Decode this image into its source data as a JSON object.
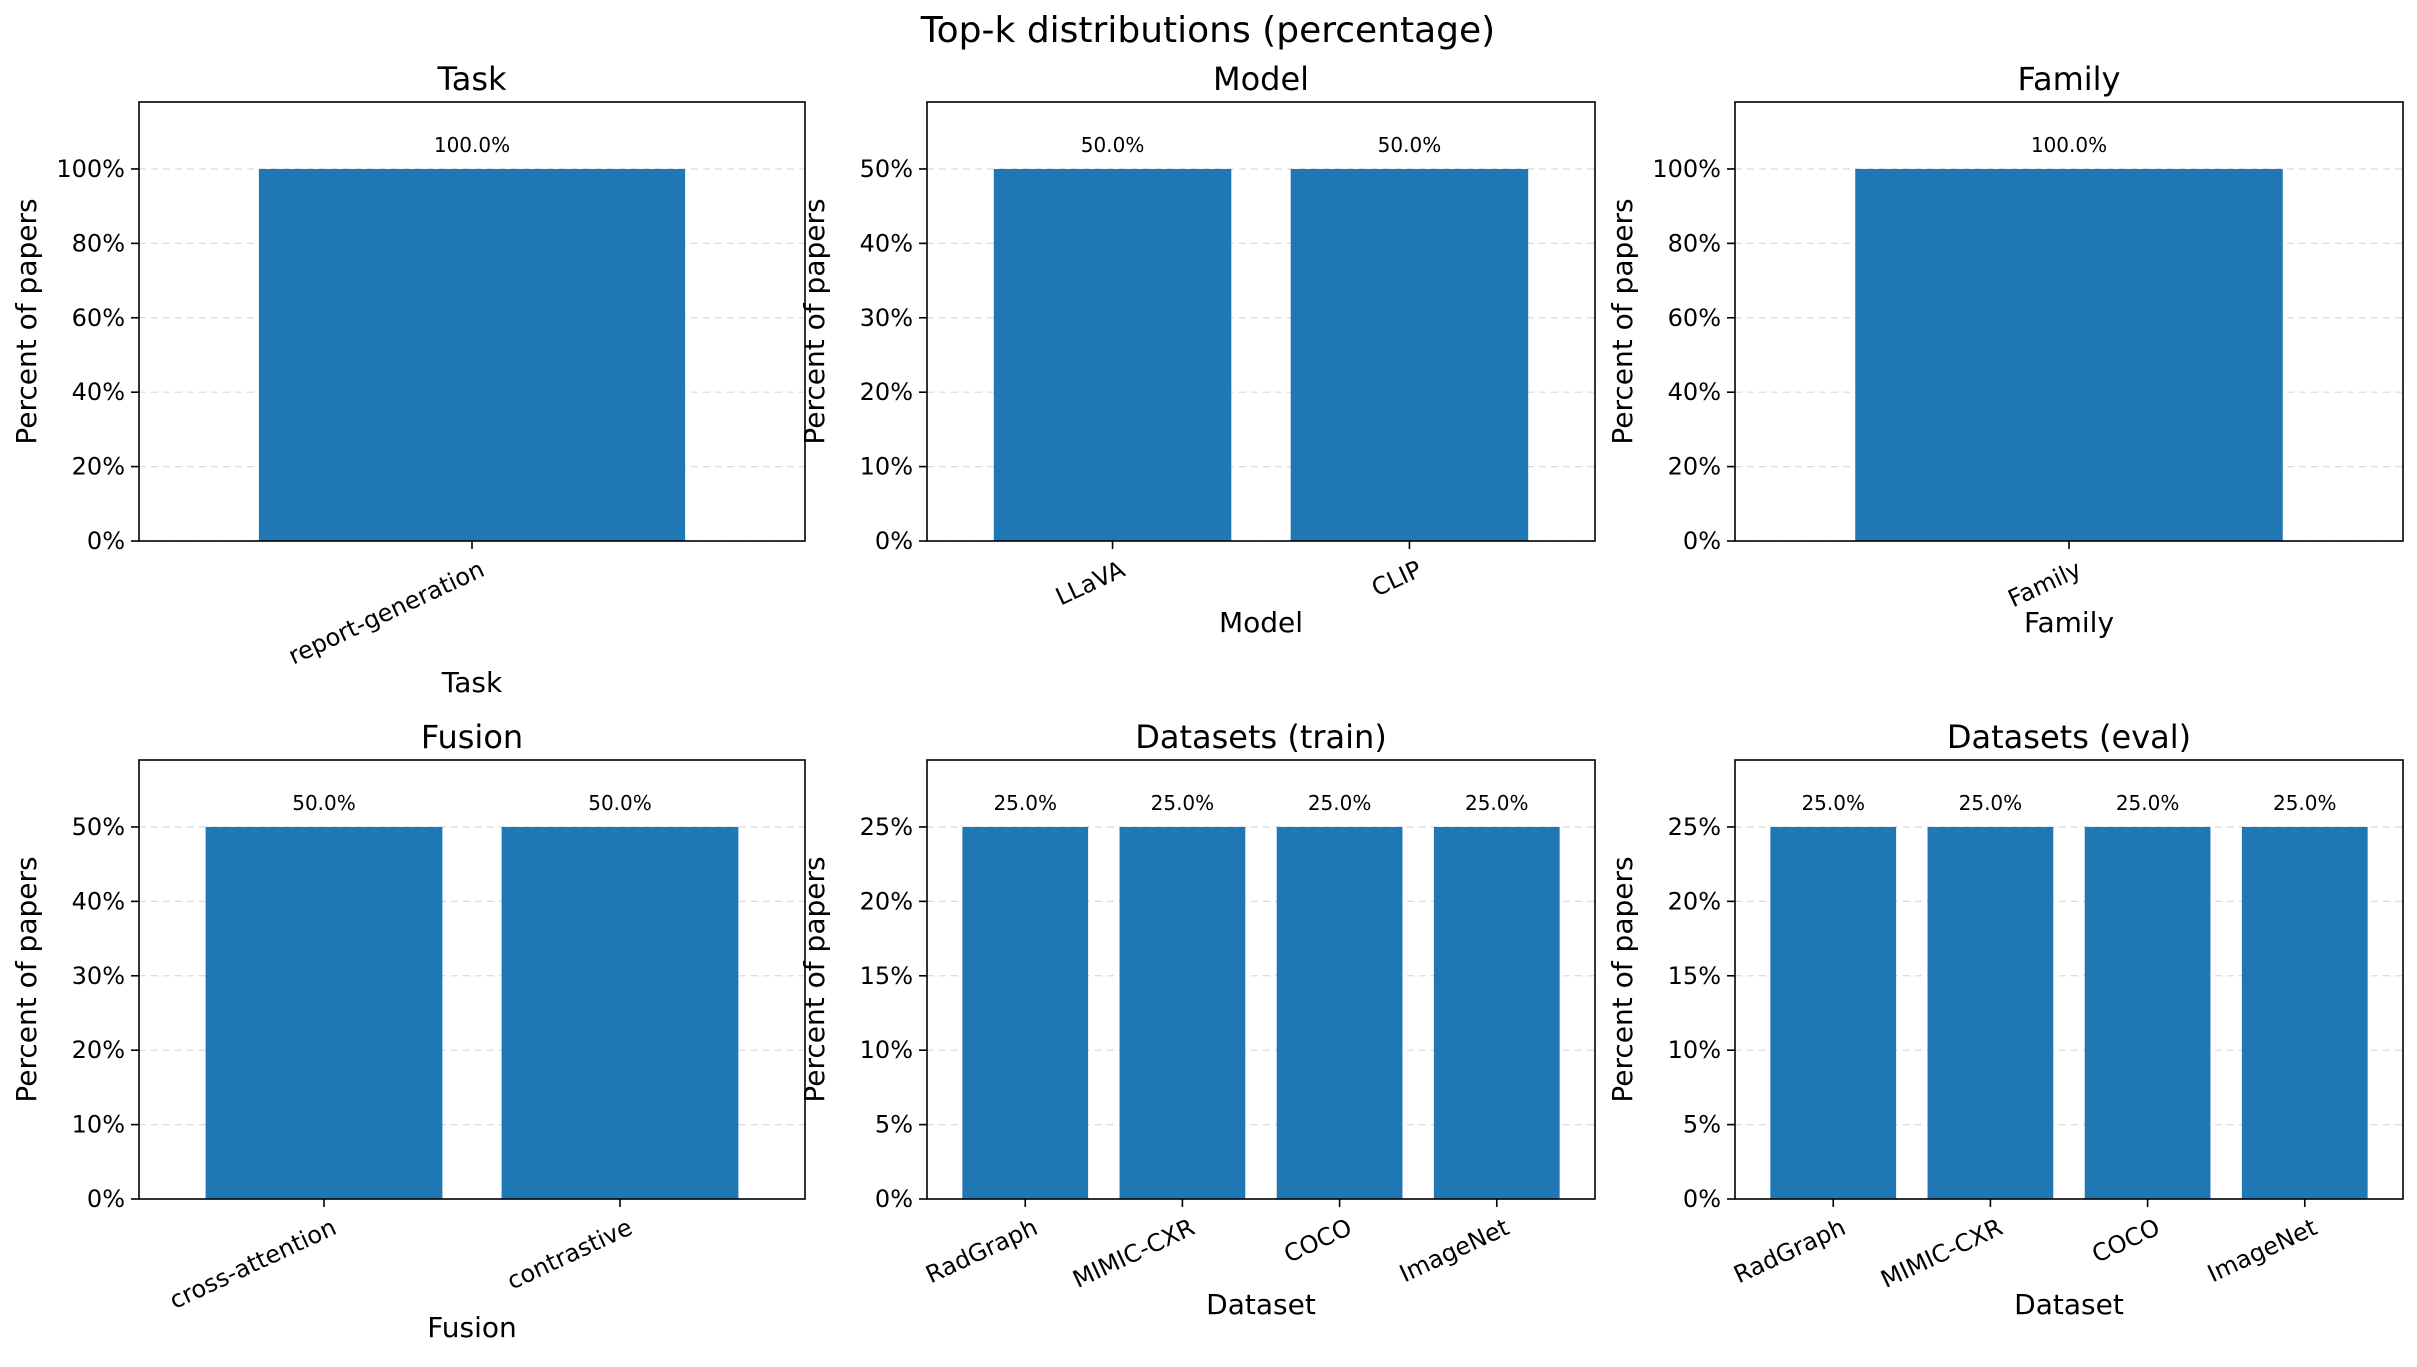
{
  "figure": {
    "title": "Top-k distributions (percentage)"
  },
  "chart_data": [
    {
      "type": "bar",
      "title": "Task",
      "xlabel": "Task",
      "ylabel": "Percent of papers",
      "categories": [
        "report-generation"
      ],
      "values": [
        100.0
      ],
      "value_labels": [
        "100.0%"
      ],
      "ylim": [
        0,
        118
      ],
      "yticks": [
        0,
        20,
        40,
        60,
        80,
        100
      ],
      "ytick_labels": [
        "0%",
        "20%",
        "40%",
        "60%",
        "80%",
        "100%"
      ],
      "grid": "y dashed",
      "bar_color": "#1f77b4",
      "xtick_rotation": -25
    },
    {
      "type": "bar",
      "title": "Model",
      "xlabel": "Model",
      "ylabel": "Percent of papers",
      "categories": [
        "LLaVA",
        "CLIP"
      ],
      "values": [
        50.0,
        50.0
      ],
      "value_labels": [
        "50.0%",
        "50.0%"
      ],
      "ylim": [
        0,
        59
      ],
      "yticks": [
        0,
        10,
        20,
        30,
        40,
        50
      ],
      "ytick_labels": [
        "0%",
        "10%",
        "20%",
        "30%",
        "40%",
        "50%"
      ],
      "grid": "y dashed",
      "bar_color": "#1f77b4",
      "xtick_rotation": -25
    },
    {
      "type": "bar",
      "title": "Family",
      "xlabel": "Family",
      "ylabel": "Percent of papers",
      "categories": [
        "Family"
      ],
      "values": [
        100.0
      ],
      "value_labels": [
        "100.0%"
      ],
      "ylim": [
        0,
        118
      ],
      "yticks": [
        0,
        20,
        40,
        60,
        80,
        100
      ],
      "ytick_labels": [
        "0%",
        "20%",
        "40%",
        "60%",
        "80%",
        "100%"
      ],
      "grid": "y dashed",
      "bar_color": "#1f77b4",
      "xtick_rotation": -25
    },
    {
      "type": "bar",
      "title": "Fusion",
      "xlabel": "Fusion",
      "ylabel": "Percent of papers",
      "categories": [
        "cross-attention",
        "contrastive"
      ],
      "values": [
        50.0,
        50.0
      ],
      "value_labels": [
        "50.0%",
        "50.0%"
      ],
      "ylim": [
        0,
        59
      ],
      "yticks": [
        0,
        10,
        20,
        30,
        40,
        50
      ],
      "ytick_labels": [
        "0%",
        "10%",
        "20%",
        "30%",
        "40%",
        "50%"
      ],
      "grid": "y dashed",
      "bar_color": "#1f77b4",
      "xtick_rotation": -25
    },
    {
      "type": "bar",
      "title": "Datasets (train)",
      "xlabel": "Dataset",
      "ylabel": "Percent of papers",
      "categories": [
        "RadGraph",
        "MIMIC-CXR",
        "COCO",
        "ImageNet"
      ],
      "values": [
        25.0,
        25.0,
        25.0,
        25.0
      ],
      "value_labels": [
        "25.0%",
        "25.0%",
        "25.0%",
        "25.0%"
      ],
      "ylim": [
        0,
        29.5
      ],
      "yticks": [
        0,
        5,
        10,
        15,
        20,
        25
      ],
      "ytick_labels": [
        "0%",
        "5%",
        "10%",
        "15%",
        "20%",
        "25%"
      ],
      "grid": "y dashed",
      "bar_color": "#1f77b4",
      "xtick_rotation": -25
    },
    {
      "type": "bar",
      "title": "Datasets (eval)",
      "xlabel": "Dataset",
      "ylabel": "Percent of papers",
      "categories": [
        "RadGraph",
        "MIMIC-CXR",
        "COCO",
        "ImageNet"
      ],
      "values": [
        25.0,
        25.0,
        25.0,
        25.0
      ],
      "value_labels": [
        "25.0%",
        "25.0%",
        "25.0%",
        "25.0%"
      ],
      "ylim": [
        0,
        29.5
      ],
      "yticks": [
        0,
        5,
        10,
        15,
        20,
        25
      ],
      "ytick_labels": [
        "0%",
        "5%",
        "10%",
        "15%",
        "20%",
        "25%"
      ],
      "grid": "y dashed",
      "bar_color": "#1f77b4",
      "xtick_rotation": -25
    }
  ]
}
